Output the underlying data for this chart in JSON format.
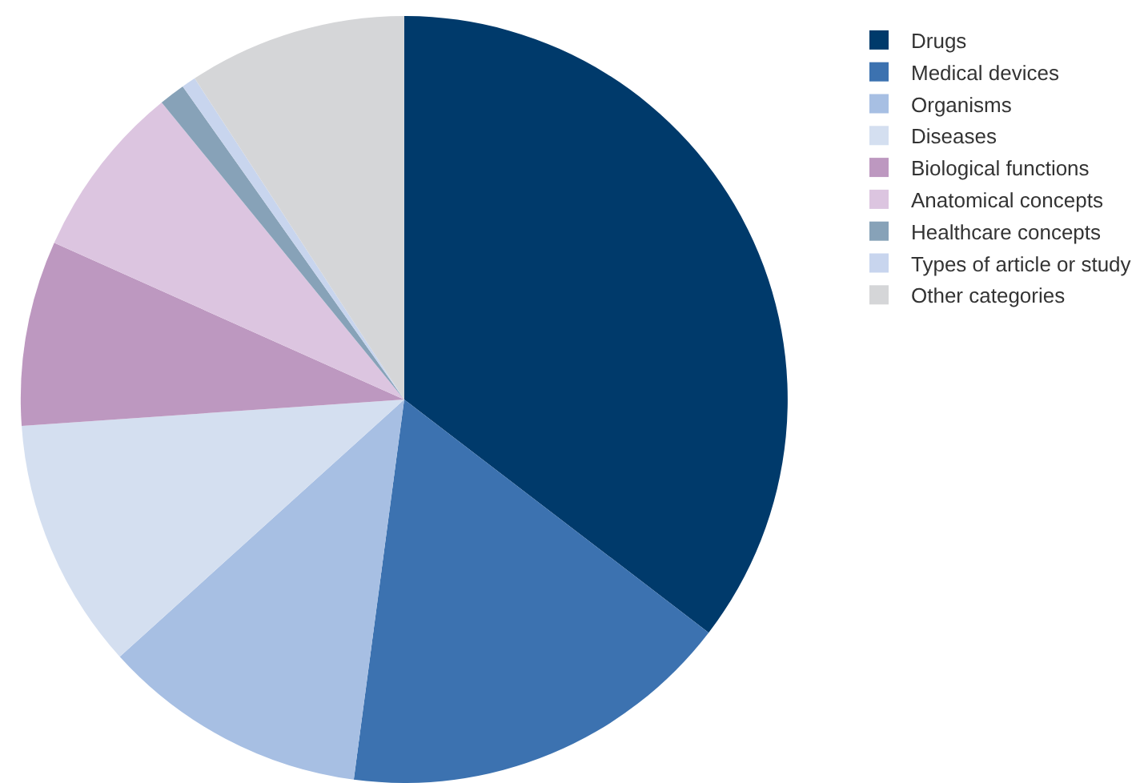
{
  "chart_data": {
    "type": "pie",
    "categories": [
      "Drugs",
      "Medical devices",
      "Organisms",
      "Diseases",
      "Biological functions",
      "Anatomical concepts",
      "Healthcare concepts",
      "Types of article or study",
      "Other categories"
    ],
    "values": [
      35.4,
      16.7,
      11.2,
      10.6,
      7.8,
      7.4,
      1.1,
      0.6,
      9.2
    ],
    "colors": [
      "#003a6b",
      "#3c72b0",
      "#a7bfe3",
      "#d4dff0",
      "#bd98c0",
      "#dcc5e0",
      "#87a2b8",
      "#c8d5ee",
      "#d5d6d8"
    ],
    "legend": "top right"
  }
}
